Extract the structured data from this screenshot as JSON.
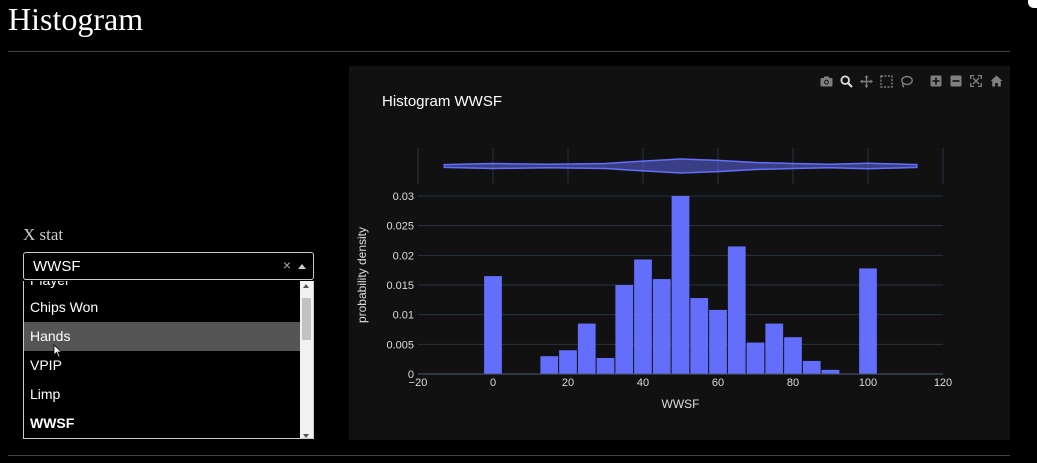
{
  "page": {
    "title": "Histogram"
  },
  "controls": {
    "xstat_label": "X stat",
    "select": {
      "value": "WWSF",
      "clear_glyph": "×"
    },
    "options_partial_top": "Player",
    "options": [
      {
        "label": "Chips Won",
        "state": "normal"
      },
      {
        "label": "Hands",
        "state": "hover"
      },
      {
        "label": "VPIP",
        "state": "normal"
      },
      {
        "label": "Limp",
        "state": "normal"
      },
      {
        "label": "WWSF",
        "state": "selected"
      }
    ]
  },
  "modebar": {
    "icons": [
      "camera-icon",
      "zoom-icon",
      "pan-icon",
      "box-select-icon",
      "lasso-select-icon",
      "zoom-in-icon",
      "zoom-out-icon",
      "autoscale-icon",
      "reset-axes-icon"
    ],
    "color": "#7f7f7f"
  },
  "chart_data": {
    "type": "bar",
    "title": "Histogram WWSF",
    "xlabel": "WWSF",
    "ylabel": "probability density",
    "xlim": [
      -20,
      120
    ],
    "ylim": [
      0,
      0.03
    ],
    "x_ticks": [
      -20,
      0,
      20,
      40,
      60,
      80,
      100,
      120
    ],
    "y_ticks": [
      0,
      0.005,
      0.01,
      0.015,
      0.02,
      0.025,
      0.03
    ],
    "x_tick_labels": [
      "−20",
      "0",
      "20",
      "40",
      "60",
      "80",
      "100",
      "120"
    ],
    "y_tick_labels": [
      "0",
      "0.005",
      "0.01",
      "0.015",
      "0.02",
      "0.025",
      "0.03"
    ],
    "bar_color": "#636efa",
    "grid": true,
    "bins": [
      {
        "x0": -2.5,
        "x1": 2.5,
        "value": 0.0165
      },
      {
        "x0": 12.5,
        "x1": 17.5,
        "value": 0.003
      },
      {
        "x0": 17.5,
        "x1": 22.5,
        "value": 0.004
      },
      {
        "x0": 22.5,
        "x1": 27.5,
        "value": 0.0085
      },
      {
        "x0": 27.5,
        "x1": 32.5,
        "value": 0.0027
      },
      {
        "x0": 32.5,
        "x1": 37.5,
        "value": 0.015
      },
      {
        "x0": 37.5,
        "x1": 42.5,
        "value": 0.0193
      },
      {
        "x0": 42.5,
        "x1": 47.5,
        "value": 0.016
      },
      {
        "x0": 47.5,
        "x1": 52.5,
        "value": 0.03
      },
      {
        "x0": 52.5,
        "x1": 57.5,
        "value": 0.0128
      },
      {
        "x0": 57.5,
        "x1": 62.5,
        "value": 0.0108
      },
      {
        "x0": 62.5,
        "x1": 67.5,
        "value": 0.0215
      },
      {
        "x0": 67.5,
        "x1": 72.5,
        "value": 0.0053
      },
      {
        "x0": 72.5,
        "x1": 77.5,
        "value": 0.0085
      },
      {
        "x0": 77.5,
        "x1": 82.5,
        "value": 0.0062
      },
      {
        "x0": 82.5,
        "x1": 87.5,
        "value": 0.0022
      },
      {
        "x0": 87.5,
        "x1": 92.5,
        "value": 0.0007
      },
      {
        "x0": 97.5,
        "x1": 102.5,
        "value": 0.0178
      }
    ],
    "marginal": {
      "type": "violin",
      "x_range": [
        -13,
        113
      ],
      "width_profile": [
        [
          -13,
          0.4
        ],
        [
          0,
          0.7
        ],
        [
          15,
          0.5
        ],
        [
          30,
          0.7
        ],
        [
          40,
          1.4
        ],
        [
          50,
          2.0
        ],
        [
          60,
          1.6
        ],
        [
          70,
          1.0
        ],
        [
          80,
          0.7
        ],
        [
          90,
          0.5
        ],
        [
          100,
          0.8
        ],
        [
          113,
          0.4
        ]
      ]
    }
  }
}
